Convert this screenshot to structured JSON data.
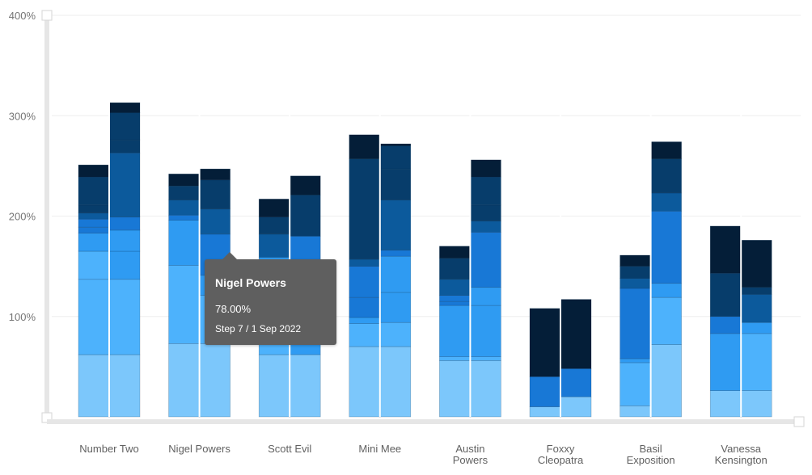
{
  "chart_data": {
    "type": "bar",
    "stacked": true,
    "y_tick_labels": [
      "100%",
      "200%",
      "300%",
      "400%"
    ],
    "ylim": [
      0,
      400
    ],
    "categories": [
      [
        "Number Two"
      ],
      [
        "Nigel Powers"
      ],
      [
        "Scott Evil"
      ],
      [
        "Mini Mee"
      ],
      [
        "Austin",
        "Powers"
      ],
      [
        "Foxxy",
        "Cleopatra"
      ],
      [
        "Basil",
        "Exposition"
      ],
      [
        "Vanessa",
        "Kensington"
      ]
    ],
    "segment_colors": [
      "#7cc7fb",
      "#4db2fc",
      "#2f9bf2",
      "#1878d6",
      "#0c5a9c",
      "#073d6b",
      "#041e38"
    ],
    "bars": [
      [
        {
          "segments": [
            62,
            75,
            28,
            18,
            6,
            8,
            6,
            8,
            28,
            12
          ]
        },
        {
          "segments": [
            62,
            75,
            28,
            21,
            13,
            64,
            13,
            27,
            10
          ]
        }
      ],
      [
        {
          "segments": [
            73,
            78,
            45,
            5,
            15,
            14,
            12
          ]
        },
        {
          "segments": [
            73,
            48,
            20,
            41,
            25,
            29,
            11
          ]
        }
      ],
      [
        {
          "segments": [
            62,
            50,
            47,
            23,
            17,
            18
          ]
        },
        {
          "segments": [
            62,
            90,
            28,
            41,
            19
          ]
        }
      ],
      [
        {
          "segments": [
            70,
            23,
            6,
            20,
            31,
            7,
            100,
            24
          ]
        },
        {
          "segments": [
            70,
            24,
            30,
            36,
            6,
            50,
            31,
            23,
            2
          ]
        }
      ],
      [
        {
          "segments": [
            56,
            4,
            51,
            4,
            6,
            16,
            21,
            12
          ]
        },
        {
          "segments": [
            56,
            4,
            51,
            18,
            55,
            11,
            16,
            28,
            17
          ]
        }
      ],
      [
        {
          "segments": [
            10,
            30,
            68
          ]
        },
        {
          "segments": [
            20,
            28,
            69
          ]
        }
      ],
      [
        {
          "segments": [
            11,
            43,
            4,
            70,
            10,
            12,
            11
          ]
        },
        {
          "segments": [
            72,
            47,
            14,
            72,
            18,
            34,
            17
          ]
        }
      ],
      [
        {
          "segments": [
            26,
            57,
            17,
            43,
            47
          ]
        },
        {
          "segments": [
            26,
            57,
            11,
            28,
            7,
            47
          ]
        }
      ]
    ]
  },
  "tooltip": {
    "title": "Nigel Powers",
    "value": "78.00%",
    "subtitle": "Step 7 / 1 Sep 2022"
  }
}
